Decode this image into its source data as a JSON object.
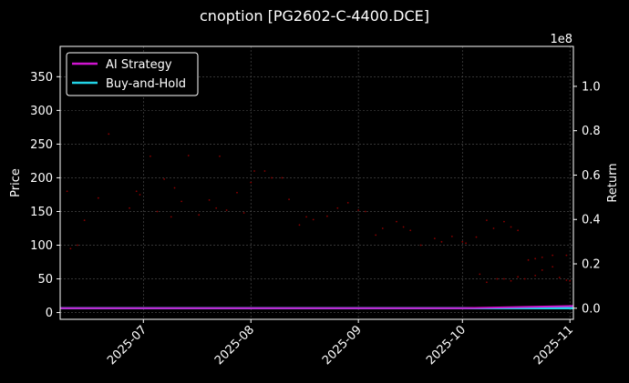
{
  "chart_data": {
    "type": "scatter",
    "title": "cnoption [PG2602-C-4400.DCE]",
    "ylabel": "Price",
    "y2label": "Return",
    "y2_multiplier": "1e8",
    "ylim": [
      -10,
      395
    ],
    "y2lim": [
      -0.05,
      1.18
    ],
    "xlim": [
      "2025-06-07",
      "2025-11-02"
    ],
    "x_ticks": [
      "2025-07",
      "2025-08",
      "2025-09",
      "2025-10",
      "2025-11"
    ],
    "y_ticks": [
      0,
      50,
      100,
      150,
      200,
      250,
      300,
      350
    ],
    "y2_ticks": [
      0.0,
      0.2,
      0.4,
      0.6,
      0.8,
      1.0
    ],
    "grid": true,
    "legend_position": "top-left",
    "colors": {
      "strategy": "#d014d0",
      "buyhold": "#22d3e6",
      "points": "#8b0000"
    },
    "series": [
      {
        "name": "AI Strategy",
        "axis": "right",
        "kind": "line",
        "x": [
          "2025-06-07",
          "2025-10-01",
          "2025-11-02"
        ],
        "values": [
          0.0,
          0.0,
          0.01
        ]
      },
      {
        "name": "Buy-and-Hold",
        "axis": "right",
        "kind": "line",
        "x": [
          "2025-06-07",
          "2025-11-02"
        ],
        "values": [
          0.0,
          0.0
        ]
      },
      {
        "name": "Price",
        "axis": "left",
        "kind": "scatter",
        "points": [
          [
            "2025-06-09",
            180
          ],
          [
            "2025-06-10",
            95
          ],
          [
            "2025-06-12",
            100
          ],
          [
            "2025-06-14",
            137
          ],
          [
            "2025-06-18",
            170
          ],
          [
            "2025-06-21",
            265
          ],
          [
            "2025-06-27",
            155
          ],
          [
            "2025-06-29",
            180
          ],
          [
            "2025-06-30",
            175
          ],
          [
            "2025-07-03",
            232
          ],
          [
            "2025-07-05",
            150
          ],
          [
            "2025-07-07",
            198
          ],
          [
            "2025-07-09",
            142
          ],
          [
            "2025-07-10",
            185
          ],
          [
            "2025-07-12",
            165
          ],
          [
            "2025-07-14",
            233
          ],
          [
            "2025-07-17",
            145
          ],
          [
            "2025-07-20",
            167
          ],
          [
            "2025-07-22",
            155
          ],
          [
            "2025-07-23",
            232
          ],
          [
            "2025-07-25",
            152
          ],
          [
            "2025-07-28",
            178
          ],
          [
            "2025-07-30",
            148
          ],
          [
            "2025-08-01",
            193
          ],
          [
            "2025-08-02",
            210
          ],
          [
            "2025-08-05",
            210
          ],
          [
            "2025-08-07",
            200
          ],
          [
            "2025-08-10",
            200
          ],
          [
            "2025-08-12",
            168
          ],
          [
            "2025-08-15",
            130
          ],
          [
            "2025-08-17",
            142
          ],
          [
            "2025-08-19",
            138
          ],
          [
            "2025-08-23",
            143
          ],
          [
            "2025-08-26",
            155
          ],
          [
            "2025-08-29",
            163
          ],
          [
            "2025-09-01",
            152
          ],
          [
            "2025-09-03",
            150
          ],
          [
            "2025-09-06",
            115
          ],
          [
            "2025-09-08",
            125
          ],
          [
            "2025-09-12",
            135
          ],
          [
            "2025-09-14",
            127
          ],
          [
            "2025-09-16",
            122
          ],
          [
            "2025-09-19",
            100
          ],
          [
            "2025-09-23",
            110
          ],
          [
            "2025-09-25",
            105
          ],
          [
            "2025-09-28",
            113
          ],
          [
            "2025-10-01",
            105
          ],
          [
            "2025-10-02",
            103
          ],
          [
            "2025-10-05",
            112
          ],
          [
            "2025-10-08",
            137
          ],
          [
            "2025-10-10",
            125
          ],
          [
            "2025-10-13",
            135
          ],
          [
            "2025-10-15",
            127
          ],
          [
            "2025-10-17",
            122
          ],
          [
            "2025-10-20",
            78
          ],
          [
            "2025-10-22",
            80
          ],
          [
            "2025-10-24",
            82
          ],
          [
            "2025-10-27",
            85
          ],
          [
            "2025-10-31",
            85
          ]
        ]
      }
    ]
  },
  "extra_points_late": [
    [
      "2025-10-06",
      57
    ],
    [
      "2025-10-08",
      45
    ],
    [
      "2025-10-11",
      50
    ],
    [
      "2025-10-13",
      50
    ],
    [
      "2025-10-15",
      47
    ],
    [
      "2025-10-17",
      53
    ],
    [
      "2025-10-19",
      50
    ],
    [
      "2025-10-22",
      55
    ],
    [
      "2025-10-24",
      63
    ],
    [
      "2025-10-27",
      68
    ],
    [
      "2025-10-29",
      52
    ],
    [
      "2025-10-31",
      48
    ],
    [
      "2025-11-01",
      47
    ]
  ]
}
